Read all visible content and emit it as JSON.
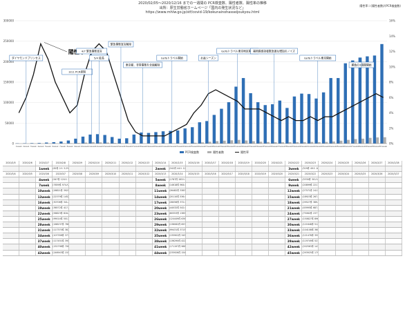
{
  "header": {
    "line1": "2020/02/05〜2020/12/16 までの一週間の PCR検査数、陽性者数、陽性率の推移",
    "line2": "出所：厚生労働省ホームページ「国内の発生状況など」",
    "line3": "https://www.mhlw.go.jp/stf/covid-19/kokunainohasseijoukyou.html",
    "top_right": "陽性率＝(陽性者数)/(PCR検査数)"
  },
  "chart_data": {
    "type": "bar",
    "series": [
      {
        "name": "PCR検査数",
        "type": "bar",
        "axis": "left",
        "values": [
          700,
          900,
          1200,
          1500,
          2500,
          3500,
          5000,
          7500,
          12000,
          17000,
          22000,
          23000,
          21000,
          16000,
          12000,
          13000,
          22000,
          27000,
          26000,
          28000,
          30000,
          31000,
          32000,
          37000,
          40000,
          52000,
          55000,
          70000,
          85000,
          101000,
          139000,
          160000,
          123000,
          101000,
          94000,
          96000,
          105000,
          87000,
          115000,
          122000,
          121000,
          110000,
          125000,
          160000,
          160000,
          196000,
          203000,
          210000,
          213000,
          215000,
          243000
        ]
      },
      {
        "name": "陽性者数",
        "type": "bar",
        "axis": "left",
        "values": [
          30,
          60,
          100,
          200,
          300,
          400,
          600,
          900,
          1500,
          2500,
          3500,
          3000,
          2500,
          1500,
          800,
          400,
          200,
          150,
          200,
          300,
          300,
          500,
          600,
          1000,
          2000,
          3000,
          4500,
          6000,
          7000,
          8000,
          9000,
          7500,
          5800,
          4500,
          3800,
          3500,
          3200,
          3300,
          3500,
          3700,
          4000,
          3500,
          4000,
          5000,
          7000,
          9000,
          11000,
          12000,
          14000,
          15000,
          15500
        ]
      },
      {
        "name": "陽性率",
        "type": "line",
        "axis": "right",
        "values": [
          4,
          6,
          9,
          13,
          11,
          8,
          6,
          4,
          5,
          9,
          12,
          13,
          12,
          9,
          6,
          3,
          1.5,
          1,
          1,
          1,
          1,
          1.5,
          2,
          2.5,
          4,
          5,
          6.5,
          7,
          6.5,
          6,
          5.5,
          4.5,
          4.5,
          4.5,
          4,
          3.5,
          3,
          3.5,
          3,
          3,
          3.5,
          3,
          3.5,
          3.5,
          4,
          4.5,
          5,
          5.5,
          6,
          6.5,
          6
        ]
      }
    ],
    "categories": [
      "1week",
      "2week",
      "3week",
      "4week",
      "5week",
      "6week",
      "7week",
      "8week",
      "9week",
      "10week",
      "11week",
      "12week",
      "13week",
      "14week",
      "15week",
      "16week",
      "17week",
      "18week",
      "19week",
      "20week",
      "21week",
      "22week",
      "23week",
      "24week",
      "25week",
      "26week",
      "27week",
      "28week",
      "29week",
      "30week",
      "31week",
      "32week",
      "33week",
      "34week",
      "35week",
      "36week",
      "37week",
      "38week",
      "39week",
      "40week",
      "41week",
      "42week",
      "43week",
      "44week",
      "45week",
      "46week",
      "47week",
      "48week",
      "49week",
      "50week",
      "51week"
    ],
    "ylim_left": [
      0,
      300000
    ],
    "ylim_right": [
      0,
      16
    ],
    "left_ticks": [
      "0",
      "50000",
      "100000",
      "150000",
      "200000",
      "250000",
      "300000"
    ],
    "right_ticks": [
      "0%",
      "2%",
      "4%",
      "6%",
      "8%",
      "10%",
      "12%",
      "14%",
      "16%"
    ],
    "annotations": [
      {
        "week": 4,
        "text": "陽性率"
      },
      {
        "week": 2,
        "text": "ダイヤモンドプリンセス"
      },
      {
        "week": 9,
        "text": "3/11 PCR抑制"
      },
      {
        "week": 11,
        "text": "4/7 緊急事態宣言"
      },
      {
        "week": 12,
        "text": "5/4 延長"
      },
      {
        "week": 15,
        "text": "緊急事態宣言解除"
      },
      {
        "week": 18,
        "text": "東京都、非常事態を全面解除"
      },
      {
        "week": 22,
        "text": "GoToトラベル開始"
      },
      {
        "week": 27,
        "text": "お盆シーズン"
      },
      {
        "week": 31,
        "text": "GoToトラベル東京地区開始"
      },
      {
        "week": 36,
        "text": "福岡県感染者数急激な増加のノイズ"
      },
      {
        "week": 42,
        "text": "GoToトラベル東京開始"
      },
      {
        "week": 48,
        "text": "勝負の3週間開始"
      }
    ],
    "legend": [
      "PCR検査数",
      "陽性者数",
      "陽性率"
    ],
    "legend_position": "bottom"
  },
  "table": {
    "rows": [
      [
        "2020/2/5",
        "2020/2/6",
        "2020/2/7",
        "2020/2/8",
        "2020/2/9",
        "2020/2/10",
        "2020/2/11",
        "2020/2/12",
        "2020/2/13",
        "2020/2/14",
        "2020/2/15",
        "2020/2/16",
        "2020/2/17",
        "2020/2/18",
        "2020/2/19",
        "2020/2/20",
        "2020/2/21",
        "2020/2/22",
        "2020/2/23",
        "2020/2/24",
        "2020/2/25",
        "2020/2/26",
        "2020/2/27",
        "2020/2/28"
      ],
      [
        "",
        "",
        "1week",
        "(62件 2人 3.2%)",
        "",
        "",
        "",
        "",
        "",
        "2week",
        "(342件 44人 12.9%)",
        "",
        "",
        "",
        "",
        "",
        "",
        "3week",
        "(529件 49人 16.0%)",
        "",
        "",
        "",
        "",
        ""
      ],
      [
        "2020/3/4",
        "2020/3/5",
        "2020/3/6",
        "2020/3/7",
        "2020/3/8",
        "2020/3/9",
        "2020/3/10",
        "2020/3/11",
        "2020/3/12",
        "2020/3/13",
        "2020/3/14",
        "2020/3/15",
        "2020/3/16",
        "2020/3/17",
        "2020/3/18",
        "2020/3/19",
        "2020/3/20",
        "2020/3/21",
        "2020/3/22",
        "2020/3/23",
        "2020/3/24",
        "2020/3/25",
        "2020/3/26",
        "2020/3/27"
      ],
      [
        "",
        "",
        "4week",
        "(947件 120人 12.7%)",
        "",
        "",
        "",
        "",
        "",
        "5week",
        "(1787件 263人 3.9%)",
        "",
        "",
        "",
        "",
        "",
        "",
        "6week",
        "(5330件 301人 5.6%)",
        "",
        "",
        "",
        "",
        ""
      ],
      [
        "",
        "",
        "7week",
        "(7659件 974人 4.3%)",
        "",
        "",
        "",
        "",
        "",
        "8week",
        "(14618件 964人 9.6%)",
        "",
        "",
        "",
        "",
        "",
        "",
        "9week",
        "(20899件 2217人 10.6%)",
        "",
        "",
        "",
        "",
        ""
      ],
      [
        "",
        "",
        "10week",
        "(26821件 3921人 13.6%)",
        "",
        "",
        "",
        "",
        "",
        "11week",
        "(26482件 3383人 12.8%)",
        "",
        "",
        "",
        "",
        "",
        "",
        "12week",
        "(27571件 2413人 8.8%)",
        "",
        "",
        "",
        "",
        ""
      ],
      [
        "",
        "",
        "13week",
        "(22379件 1452人 6.5%)",
        "",
        "",
        "",
        "",
        "",
        "14week",
        "(20110件 536人 2.7%)",
        "",
        "",
        "",
        "",
        "",
        "",
        "15week",
        "(18923件 267人 1.4%)",
        "",
        "",
        "",
        "",
        ""
      ],
      [
        "",
        "",
        "16week",
        "(30706件 341人 1.1%)",
        "",
        "",
        "",
        "",
        "",
        "17week",
        "(28056件 372人 1.3%)",
        "",
        "",
        "",
        "",
        "",
        "",
        "18week",
        "(29527件 389人 1.3%)",
        "",
        "",
        "",
        "",
        ""
      ],
      [
        "",
        "",
        "19week",
        "(36572件 417人 1.1%)",
        "",
        "",
        "",
        "",
        "",
        "20week",
        "(44032件 542人 1.2%)",
        "",
        "",
        "",
        "",
        "",
        "",
        "21week",
        "(45995件 687人 1.5%)",
        "",
        "",
        "",
        "",
        ""
      ],
      [
        "",
        "",
        "22week",
        "(56823件 816人 1.4%)",
        "",
        "",
        "",
        "",
        "",
        "23week",
        "(60553件 1385人 2.3%)",
        "",
        "",
        "",
        "",
        "",
        "",
        "24week",
        "(75062件 2377人 3.2%)",
        "",
        "",
        "",
        "",
        ""
      ],
      [
        "",
        "",
        "25week",
        "(99014件 5017人 5.1%)",
        "",
        "",
        "",
        "",
        "",
        "26week",
        "(124449件 6363人 5.1%)",
        "",
        "",
        "",
        "",
        "",
        "",
        "27week",
        "(150827件 8962人 5.9%)",
        "",
        "",
        "",
        "",
        ""
      ],
      [
        "",
        "",
        "28week",
        "(168237件 7862人 4.7%)",
        "",
        "",
        "",
        "",
        "",
        "29week",
        "(136082件 6977人 5.1%)",
        "",
        "",
        "",
        "",
        "",
        "",
        "30week",
        "(121648件 5121人 4.2%)",
        "",
        "",
        "",
        "",
        ""
      ],
      [
        "",
        "",
        "31week",
        "(117370件 3875人 3.3%)",
        "",
        "",
        "",
        "",
        "",
        "32week",
        "(99431件 3715人 3.7%)",
        "",
        "",
        "",
        "",
        "",
        "",
        "33week",
        "(104108件 3609人 3.5%)",
        "",
        "",
        "",
        "",
        ""
      ],
      [
        "",
        "",
        "34week",
        "(107358件 3771人 3.5%)",
        "",
        "",
        "",
        "",
        "",
        "35week",
        "(135902件 3457人 2.5%)",
        "",
        "",
        "",
        "",
        "",
        "",
        "36week",
        "(121478件 3591人 3.0%)",
        "",
        "",
        "",
        "",
        ""
      ],
      [
        "",
        "",
        "37week",
        "(117451件 3915人 3.3%)",
        "",
        "",
        "",
        "",
        "",
        "38week",
        "(136290件 4227人 3.1%)",
        "",
        "",
        "",
        "",
        "",
        "",
        "39week",
        "(119749件 5234人 4.4%)",
        "",
        "",
        "",
        "",
        ""
      ],
      [
        "",
        "",
        "40week",
        "(152798件 7063人 4.6%)",
        "",
        "",
        "",
        "",
        "",
        "41week",
        "(171197件 9883人 5.8%)",
        "",
        "",
        "",
        "",
        "",
        "",
        "42week",
        "(202563件 14364人 7.1%)",
        "",
        "",
        "",
        "",
        ""
      ],
      [
        "",
        "",
        "43week",
        "(246943件 15102人 6.1%)",
        "",
        "",
        "",
        "",
        "",
        "44week",
        "(235926件 15497人 6.6%)",
        "",
        "",
        "",
        "",
        "",
        "",
        "45week",
        "(293925件 17980人 6.1%)",
        "",
        "",
        "",
        "",
        ""
      ]
    ]
  }
}
